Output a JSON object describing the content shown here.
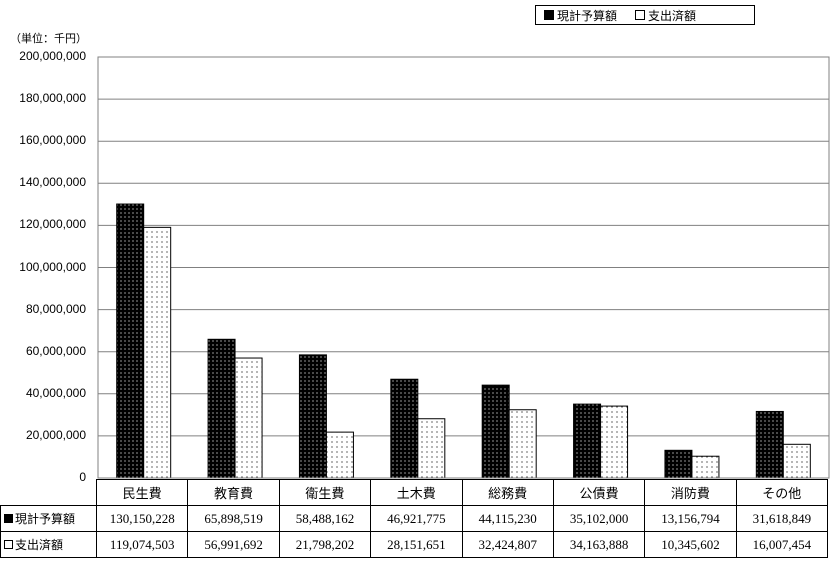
{
  "legend": {
    "budget": "現計予算額",
    "spent": "支出済額"
  },
  "unit_label": "（単位：千円）",
  "colors": {
    "budget_fill": "#000000",
    "spent_fill": "#ffffff",
    "grid": "#808080"
  },
  "chart_data": {
    "type": "bar",
    "categories": [
      "民生費",
      "教育費",
      "衛生費",
      "土木費",
      "総務費",
      "公債費",
      "消防費",
      "その他"
    ],
    "series": [
      {
        "name": "現計予算額",
        "values": [
          130150228,
          65898519,
          58488162,
          46921775,
          44115230,
          35102000,
          13156794,
          31618849
        ],
        "display": [
          "130,150,228",
          "65,898,519",
          "58,488,162",
          "46,921,775",
          "44,115,230",
          "35,102,000",
          "13,156,794",
          "31,618,849"
        ]
      },
      {
        "name": "支出済額",
        "values": [
          119074503,
          56991692,
          21798202,
          28151651,
          32424807,
          34163888,
          10345602,
          16007454
        ],
        "display": [
          "119,074,503",
          "56,991,692",
          "21,798,202",
          "28,151,651",
          "32,424,807",
          "34,163,888",
          "10,345,602",
          "16,007,454"
        ]
      }
    ],
    "ylim": [
      0,
      200000000
    ],
    "yticks": [
      "0",
      "20,000,000",
      "40,000,000",
      "60,000,000",
      "80,000,000",
      "100,000,000",
      "120,000,000",
      "140,000,000",
      "160,000,000",
      "180,000,000",
      "200,000,000"
    ],
    "ytick_values": [
      0,
      20000000,
      40000000,
      60000000,
      80000000,
      100000000,
      120000000,
      140000000,
      160000000,
      180000000,
      200000000
    ],
    "grid": true,
    "legend_position": "top-right",
    "data_table": true
  }
}
